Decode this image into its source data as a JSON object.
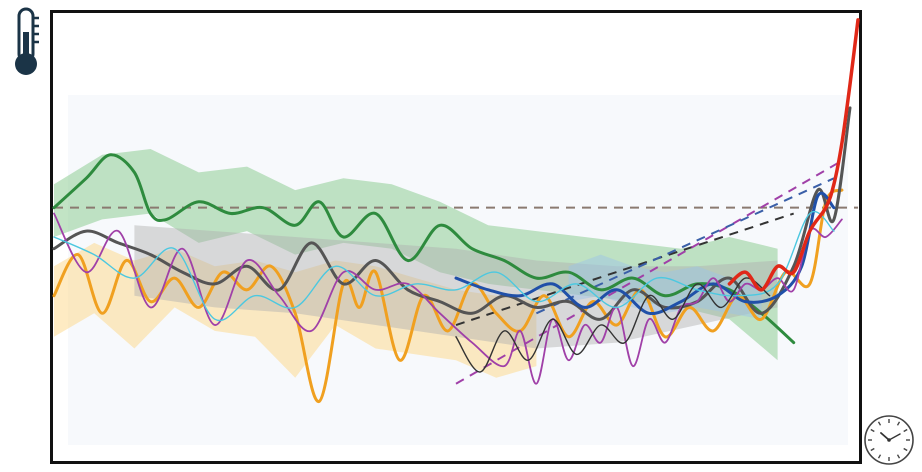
{
  "chart_data": {
    "type": "line",
    "title": "",
    "xlabel": "",
    "ylabel": "",
    "x_axis_icon": "clock-icon",
    "y_axis_icon": "thermometer-icon",
    "xlim": [
      0,
      100
    ],
    "ylim": [
      -1.6,
      2.2
    ],
    "grid": false,
    "legend": "none",
    "reference_lines": [
      {
        "color": "#8a7a70",
        "style": "dashed",
        "x": [
          0,
          100
        ],
        "y": [
          0.55,
          0.55
        ]
      },
      {
        "color": "#333333",
        "style": "dashed",
        "x": [
          50,
          92
        ],
        "y": [
          -0.45,
          0.5
        ]
      },
      {
        "color": "#a040a8",
        "style": "dashed",
        "x": [
          50,
          98
        ],
        "y": [
          -0.95,
          0.95
        ]
      },
      {
        "color": "#3a5fa8",
        "style": "dashed",
        "x": [
          60,
          97
        ],
        "y": [
          -0.35,
          0.8
        ]
      }
    ],
    "bands": [
      {
        "color": "#78c47e",
        "x": [
          0,
          6,
          12,
          18,
          24,
          30,
          36,
          42,
          48,
          54,
          60,
          66,
          72,
          78,
          84,
          90
        ],
        "upper": [
          0.75,
          1.0,
          1.05,
          0.85,
          0.9,
          0.7,
          0.8,
          0.75,
          0.6,
          0.4,
          0.35,
          0.3,
          0.25,
          0.2,
          0.3,
          0.2
        ],
        "lower": [
          0.3,
          0.45,
          0.5,
          0.25,
          0.35,
          0.15,
          0.25,
          0.2,
          0.0,
          -0.1,
          -0.15,
          -0.2,
          -0.25,
          -0.3,
          -0.4,
          -0.75
        ]
      },
      {
        "color": "#fcd27a",
        "x": [
          0,
          5,
          10,
          15,
          20,
          25,
          30,
          35,
          40,
          45,
          50,
          55,
          60
        ],
        "upper": [
          0.05,
          0.25,
          0.1,
          0.2,
          0.05,
          0.1,
          0.0,
          0.1,
          0.05,
          -0.05,
          -0.15,
          -0.2,
          -0.25
        ],
        "lower": [
          -0.55,
          -0.35,
          -0.65,
          -0.3,
          -0.5,
          -0.55,
          -0.9,
          -0.45,
          -0.65,
          -0.7,
          -0.75,
          -0.9,
          -0.8
        ]
      },
      {
        "color": "#b0b0b0",
        "x": [
          10,
          20,
          30,
          40,
          50,
          60,
          70,
          80,
          90
        ],
        "upper": [
          0.4,
          0.35,
          0.3,
          0.25,
          0.2,
          0.1,
          0.05,
          0.05,
          0.1
        ],
        "lower": [
          -0.2,
          -0.3,
          -0.35,
          -0.45,
          -0.55,
          -0.65,
          -0.6,
          -0.45,
          -0.3
        ]
      },
      {
        "color": "#9cc4e8",
        "x": [
          64,
          68,
          72,
          76,
          80,
          84,
          88
        ],
        "upper": [
          0.05,
          0.15,
          0.05,
          0.0,
          0.05,
          -0.05,
          -0.1
        ],
        "lower": [
          -0.25,
          -0.2,
          -0.3,
          -0.35,
          -0.3,
          -0.35,
          -0.4
        ]
      }
    ],
    "series": [
      {
        "color": "#2e8b3e",
        "width": 3,
        "x": [
          0,
          4,
          7,
          10,
          12,
          14,
          18,
          22,
          26,
          30,
          33,
          36,
          40,
          44,
          48,
          52,
          56,
          60,
          64,
          68,
          72,
          76,
          80,
          84,
          88,
          92
        ],
        "y": [
          0.55,
          0.8,
          1.0,
          0.85,
          0.5,
          0.45,
          0.6,
          0.5,
          0.55,
          0.4,
          0.6,
          0.3,
          0.5,
          0.1,
          0.4,
          0.2,
          0.1,
          -0.05,
          0.0,
          -0.15,
          -0.05,
          -0.2,
          -0.1,
          -0.15,
          -0.35,
          -0.6
        ]
      },
      {
        "color": "#f0a020",
        "width": 3,
        "x": [
          0,
          3,
          6,
          9,
          12,
          15,
          18,
          21,
          24,
          27,
          30,
          33,
          36,
          38,
          40,
          43,
          46,
          49,
          52,
          55,
          58,
          61,
          64,
          67,
          70,
          73,
          76,
          79,
          82,
          85,
          88,
          91,
          94,
          96,
          98
        ],
        "y": [
          -0.2,
          0.15,
          -0.35,
          0.1,
          -0.25,
          -0.05,
          -0.3,
          0.0,
          -0.15,
          0.05,
          -0.35,
          -1.1,
          -0.1,
          -0.3,
          0.0,
          -0.75,
          -0.2,
          -0.5,
          -0.1,
          -0.35,
          -0.5,
          -0.2,
          -0.55,
          -0.25,
          -0.45,
          -0.15,
          -0.55,
          -0.3,
          -0.5,
          -0.2,
          -0.4,
          0.0,
          -0.1,
          0.6,
          0.7
        ]
      },
      {
        "color": "#555555",
        "width": 3,
        "x": [
          0,
          4,
          8,
          12,
          16,
          20,
          24,
          28,
          32,
          36,
          40,
          44,
          48,
          52,
          56,
          60,
          64,
          68,
          72,
          76,
          80,
          84,
          88,
          92,
          95,
          97,
          99
        ],
        "y": [
          0.2,
          0.35,
          0.25,
          0.15,
          0.0,
          -0.1,
          0.05,
          -0.15,
          0.25,
          -0.1,
          0.1,
          -0.15,
          -0.25,
          -0.35,
          -0.2,
          -0.3,
          -0.25,
          -0.4,
          -0.15,
          -0.3,
          -0.25,
          -0.05,
          -0.35,
          0.05,
          0.7,
          0.45,
          1.4
        ]
      },
      {
        "color": "#2050a8",
        "width": 3,
        "x": [
          50,
          54,
          58,
          62,
          66,
          70,
          74,
          78,
          82,
          86,
          90,
          93,
          95,
          97
        ],
        "y": [
          -0.05,
          -0.15,
          -0.2,
          -0.1,
          -0.3,
          -0.15,
          -0.35,
          -0.25,
          -0.1,
          -0.25,
          -0.2,
          0.05,
          0.65,
          0.55
        ]
      },
      {
        "color": "#a040a8",
        "width": 1.8,
        "x": [
          0,
          4,
          8,
          12,
          16,
          20,
          24,
          28,
          32,
          36,
          40,
          44,
          48,
          52,
          56,
          58,
          60,
          62,
          64,
          66,
          68,
          70,
          72,
          74,
          76,
          78,
          80,
          82,
          84,
          86,
          88,
          90,
          92,
          94,
          96,
          98
        ],
        "y": [
          0.5,
          0.0,
          0.35,
          -0.3,
          0.2,
          -0.45,
          0.1,
          -0.2,
          -0.5,
          0.0,
          -0.15,
          -0.1,
          -0.35,
          -0.6,
          -0.8,
          -0.5,
          -0.95,
          -0.4,
          -0.75,
          -0.45,
          -0.6,
          -0.3,
          -0.8,
          -0.4,
          -0.6,
          -0.3,
          -0.25,
          -0.05,
          -0.25,
          -0.1,
          -0.15,
          -0.05,
          -0.15,
          0.35,
          0.3,
          0.45
        ]
      },
      {
        "color": "#4cc8e0",
        "width": 1.4,
        "x": [
          0,
          5,
          10,
          15,
          20,
          25,
          30,
          35,
          40,
          45,
          50,
          55,
          60,
          65,
          70,
          75,
          80,
          85,
          90,
          94,
          97
        ],
        "y": [
          0.3,
          0.15,
          -0.05,
          0.2,
          -0.4,
          -0.2,
          -0.3,
          0.05,
          -0.2,
          -0.1,
          -0.15,
          0.0,
          -0.25,
          -0.1,
          -0.3,
          -0.05,
          -0.15,
          -0.2,
          -0.1,
          0.5,
          0.35
        ]
      },
      {
        "color": "#333333",
        "width": 1.4,
        "x": [
          50,
          53,
          56,
          59,
          62,
          65,
          68,
          71,
          74,
          77,
          80,
          83,
          86,
          89
        ],
        "y": [
          -0.55,
          -0.85,
          -0.5,
          -0.75,
          -0.4,
          -0.7,
          -0.45,
          -0.6,
          -0.2,
          -0.4,
          -0.1,
          -0.3,
          -0.05,
          -0.2
        ]
      },
      {
        "color": "#e02818",
        "width": 3.5,
        "x": [
          84,
          86,
          88,
          90,
          92,
          94,
          96,
          97,
          98,
          99,
          100
        ],
        "y": [
          -0.1,
          0.0,
          -0.15,
          0.05,
          0.0,
          0.35,
          0.55,
          0.75,
          1.1,
          1.6,
          2.15
        ]
      }
    ]
  }
}
